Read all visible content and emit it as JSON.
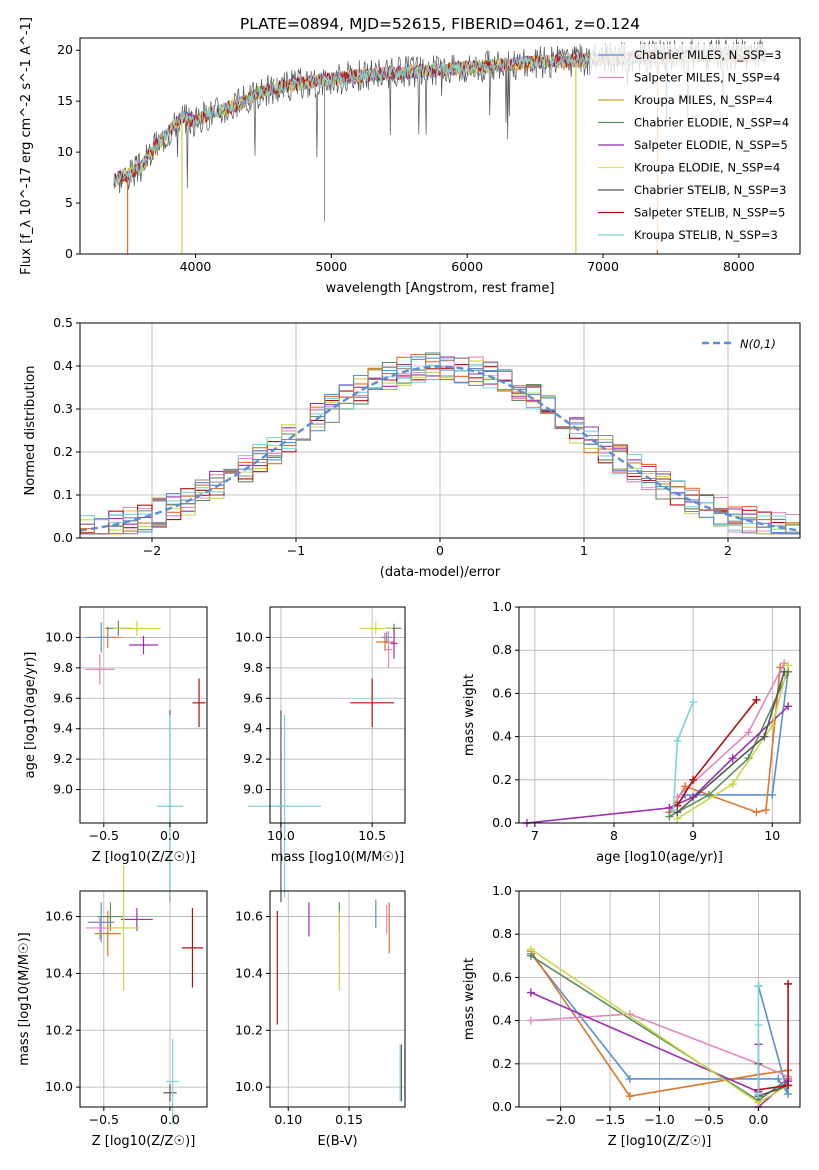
{
  "title": "PLATE=0894, MJD=52615, FIBERID=0461, z=0.124",
  "colors": [
    "#5b8ed6",
    "#e2742b",
    "#5e8c5e",
    "#e08ac0",
    "#9a2fb0",
    "#c9d94a",
    "#8a8a8a",
    "#b51010",
    "#7fd4d8"
  ],
  "legend_entries": [
    {
      "label": "Chabrier MILES, N_SSP=3",
      "color": "#5b8ed6"
    },
    {
      "label": "Salpeter MILES, N_SSP=4",
      "color": "#e08ac0"
    },
    {
      "label": "Kroupa MILES, N_SSP=4",
      "color": "#c8a030"
    },
    {
      "label": "Chabrier ELODIE, N_SSP=4",
      "color": "#5e8c5e"
    },
    {
      "label": "Salpeter ELODIE, N_SSP=5",
      "color": "#9a2fb0"
    },
    {
      "label": "Kroupa ELODIE, N_SSP=4",
      "color": "#d8e060"
    },
    {
      "label": "Chabrier STELIB, N_SSP=3",
      "color": "#555555"
    },
    {
      "label": "Salpeter STELIB, N_SSP=5",
      "color": "#b51010"
    },
    {
      "label": "Kroupa STELIB, N_SSP=3",
      "color": "#7fd4d8"
    }
  ],
  "chart_data": [
    {
      "id": "spectrum",
      "type": "line",
      "xlabel": "wavelength [Angstrom, rest frame]",
      "ylabel": "Flux [f_λ 10^-17 erg cm^-2 s^-1 A^-1]",
      "xlim": [
        3150,
        8450
      ],
      "ylim": [
        0,
        21.2
      ],
      "xticks": [
        4000,
        5000,
        6000,
        7000,
        8000
      ],
      "yticks": [
        0,
        5,
        10,
        15,
        20
      ],
      "grid": false,
      "legend": "top-right",
      "continuum": [
        [
          3400,
          7.3
        ],
        [
          3500,
          7.8
        ],
        [
          3600,
          8.5
        ],
        [
          3700,
          10.5
        ],
        [
          3800,
          12.0
        ],
        [
          3900,
          13.5
        ],
        [
          4000,
          13.0
        ],
        [
          4100,
          13.8
        ],
        [
          4200,
          14.2
        ],
        [
          4300,
          14.6
        ],
        [
          4400,
          15.3
        ],
        [
          4500,
          16.0
        ],
        [
          4700,
          16.6
        ],
        [
          4900,
          17.0
        ],
        [
          5100,
          17.3
        ],
        [
          5300,
          17.6
        ],
        [
          5600,
          17.9
        ],
        [
          5900,
          18.2
        ],
        [
          6200,
          18.5
        ],
        [
          6500,
          18.8
        ],
        [
          6800,
          19.0
        ],
        [
          7100,
          19.2
        ],
        [
          7400,
          19.4
        ],
        [
          7700,
          19.5
        ],
        [
          8000,
          19.5
        ],
        [
          8200,
          19.5
        ]
      ]
    },
    {
      "id": "residuals",
      "type": "step",
      "xlabel": "(data-model)/error",
      "ylabel": "Normed distribution",
      "xlim": [
        -2.5,
        2.5
      ],
      "ylim": [
        0,
        0.5
      ],
      "xticks": [
        -2,
        -1,
        0,
        1,
        2
      ],
      "yticks": [
        0.0,
        0.1,
        0.2,
        0.3,
        0.4,
        0.5
      ],
      "grid": true,
      "legend": "top-right",
      "normal_curve_label": "N(0,1)",
      "normal_curve_color": "#5b8ed6",
      "bin_width": 0.1,
      "series": [
        {
          "color": "#5e8c5e",
          "seed": 1
        },
        {
          "color": "#e08ac0",
          "seed": 2
        },
        {
          "color": "#9a2fb0",
          "seed": 3
        },
        {
          "color": "#c9d94a",
          "seed": 4
        },
        {
          "color": "#b51010",
          "seed": 5
        },
        {
          "color": "#7fd4d8",
          "seed": 6
        },
        {
          "color": "#e2742b",
          "seed": 7
        },
        {
          "color": "#5b8ed6",
          "seed": 8
        },
        {
          "color": "#8a8a8a",
          "seed": 9
        }
      ]
    },
    {
      "id": "age_vs_Z",
      "type": "errorbar",
      "xlabel": "Z [log10(Z/Z☉)]",
      "ylabel": "age [log10(age/yr)]",
      "xlim": [
        -0.68,
        0.28
      ],
      "ylim": [
        8.78,
        10.2
      ],
      "xticks": [
        -0.5,
        0.0
      ],
      "yticks": [
        9.0,
        9.2,
        9.4,
        9.6,
        9.8,
        10.0
      ],
      "grid": true,
      "points": [
        {
          "x": -0.52,
          "y": 10.0,
          "xerr": 0.12,
          "yerr": 0.1,
          "color": "#5b8ed6"
        },
        {
          "x": -0.47,
          "y": 10.0,
          "xerr": 0.1,
          "yerr": 0.07,
          "color": "#e2742b"
        },
        {
          "x": -0.39,
          "y": 10.06,
          "xerr": 0.1,
          "yerr": 0.05,
          "color": "#5e8c5e"
        },
        {
          "x": -0.53,
          "y": 9.79,
          "xerr": 0.11,
          "yerr": 0.1,
          "color": "#e08ac0"
        },
        {
          "x": -0.2,
          "y": 9.95,
          "xerr": 0.11,
          "yerr": 0.06,
          "color": "#9a2fb0"
        },
        {
          "x": -0.25,
          "y": 10.06,
          "xerr": 0.18,
          "yerr": 0.05,
          "color": "#c9d94a"
        },
        {
          "x": 0.0,
          "y": 8.89,
          "xerr": 0.02,
          "yerr": 0.63,
          "color": "#555555"
        },
        {
          "x": 0.22,
          "y": 9.57,
          "xerr": 0.05,
          "yerr": 0.16,
          "color": "#b51010"
        },
        {
          "x": 0.0,
          "y": 8.89,
          "xerr": 0.1,
          "yerr": 0.6,
          "color": "#7fd4d8"
        }
      ]
    },
    {
      "id": "age_vs_mass",
      "type": "errorbar",
      "xlabel": "mass [log10(M/M☉)]",
      "ylabel": "",
      "xlim": [
        9.94,
        10.68
      ],
      "ylim": [
        8.78,
        10.2
      ],
      "xticks": [
        10.0,
        10.5
      ],
      "yticks": [
        9.0,
        9.2,
        9.4,
        9.6,
        9.8,
        10.0
      ],
      "grid": true,
      "points": [
        {
          "x": 10.58,
          "y": 10.0,
          "xerr": 0.03,
          "yerr": 0.04,
          "color": "#5b8ed6"
        },
        {
          "x": 10.57,
          "y": 9.97,
          "xerr": 0.05,
          "yerr": 0.06,
          "color": "#e2742b"
        },
        {
          "x": 10.62,
          "y": 10.06,
          "xerr": 0.04,
          "yerr": 0.03,
          "color": "#5e8c5e"
        },
        {
          "x": 10.59,
          "y": 9.92,
          "xerr": 0.02,
          "yerr": 0.12,
          "color": "#e08ac0"
        },
        {
          "x": 10.62,
          "y": 9.96,
          "xerr": 0.02,
          "yerr": 0.1,
          "color": "#9a2fb0"
        },
        {
          "x": 10.52,
          "y": 10.06,
          "xerr": 0.09,
          "yerr": 0.04,
          "color": "#c9d94a"
        },
        {
          "x": 10.0,
          "y": 8.89,
          "xerr": 0.02,
          "yerr": 0.63,
          "color": "#555555"
        },
        {
          "x": 10.5,
          "y": 9.57,
          "xerr": 0.12,
          "yerr": 0.16,
          "color": "#b51010"
        },
        {
          "x": 10.02,
          "y": 8.89,
          "xerr": 0.2,
          "yerr": 0.6,
          "color": "#7fd4d8"
        }
      ]
    },
    {
      "id": "mass_weight_vs_age",
      "type": "line",
      "xlabel": "age [log10(age/yr)]",
      "ylabel": "mass weight",
      "xlim": [
        6.8,
        10.35
      ],
      "ylim": [
        0,
        1.0
      ],
      "xticks": [
        7,
        8,
        9,
        10
      ],
      "yticks": [
        0.0,
        0.2,
        0.4,
        0.6,
        0.8,
        1.0
      ],
      "grid": true,
      "series": [
        {
          "color": "#5b8ed6",
          "points": [
            [
              8.7,
              0.05
            ],
            [
              8.9,
              0.13
            ],
            [
              10.0,
              0.13
            ],
            [
              10.2,
              0.7
            ]
          ]
        },
        {
          "color": "#e2742b",
          "points": [
            [
              8.7,
              0.05
            ],
            [
              8.9,
              0.17
            ],
            [
              9.8,
              0.05
            ],
            [
              9.92,
              0.06
            ],
            [
              10.1,
              0.72
            ]
          ]
        },
        {
          "color": "#5e8c5e",
          "points": [
            [
              8.7,
              0.03
            ],
            [
              9.2,
              0.13
            ],
            [
              9.7,
              0.3
            ],
            [
              10.2,
              0.7
            ]
          ]
        },
        {
          "color": "#e08ac0",
          "points": [
            [
              8.8,
              0.12
            ],
            [
              9.7,
              0.42
            ],
            [
              10.15,
              0.74
            ]
          ]
        },
        {
          "color": "#9a2fb0",
          "points": [
            [
              6.9,
              0.0
            ],
            [
              8.7,
              0.07
            ],
            [
              9.0,
              0.12
            ],
            [
              9.5,
              0.3
            ],
            [
              10.2,
              0.54
            ]
          ]
        },
        {
          "color": "#c9d94a",
          "points": [
            [
              8.8,
              0.02
            ],
            [
              9.5,
              0.18
            ],
            [
              10.0,
              0.45
            ],
            [
              10.2,
              0.73
            ]
          ]
        },
        {
          "color": "#555555",
          "points": [
            [
              8.8,
              0.05
            ],
            [
              9.9,
              0.4
            ],
            [
              10.15,
              0.7
            ]
          ]
        },
        {
          "color": "#b51010",
          "points": [
            [
              8.8,
              0.08
            ],
            [
              9.0,
              0.2
            ],
            [
              9.8,
              0.57
            ]
          ]
        },
        {
          "color": "#7fd4d8",
          "points": [
            [
              8.75,
              0.06
            ],
            [
              8.8,
              0.38
            ],
            [
              9.0,
              0.56
            ]
          ]
        }
      ]
    },
    {
      "id": "mass_vs_Z",
      "type": "errorbar",
      "xlabel": "Z [log10(Z/Z☉)]",
      "ylabel": "mass [log10(M/M☉)]",
      "xlim": [
        -0.68,
        0.28
      ],
      "ylim": [
        9.93,
        10.69
      ],
      "xticks": [
        -0.5,
        0.0
      ],
      "yticks": [
        10.0,
        10.2,
        10.4,
        10.6
      ],
      "grid": true,
      "points": [
        {
          "x": -0.52,
          "y": 10.58,
          "xerr": 0.1,
          "yerr": 0.07,
          "color": "#5b8ed6"
        },
        {
          "x": -0.47,
          "y": 10.54,
          "xerr": 0.1,
          "yerr": 0.08,
          "color": "#e2742b"
        },
        {
          "x": -0.45,
          "y": 10.6,
          "xerr": 0.1,
          "yerr": 0.05,
          "color": "#5e8c5e"
        },
        {
          "x": -0.53,
          "y": 10.56,
          "xerr": 0.11,
          "yerr": 0.04,
          "color": "#e08ac0"
        },
        {
          "x": -0.25,
          "y": 10.59,
          "xerr": 0.12,
          "yerr": 0.04,
          "color": "#9a2fb0"
        },
        {
          "x": -0.35,
          "y": 10.56,
          "xerr": 0.12,
          "yerr": 0.22,
          "color": "#c9d94a"
        },
        {
          "x": 0.0,
          "y": 9.98,
          "xerr": 0.05,
          "yerr": 0.03,
          "color": "#555555"
        },
        {
          "x": 0.17,
          "y": 10.49,
          "xerr": 0.08,
          "yerr": 0.14,
          "color": "#b51010"
        },
        {
          "x": 0.02,
          "y": 10.02,
          "xerr": 0.05,
          "yerr": 0.15,
          "color": "#7fd4d8"
        }
      ]
    },
    {
      "id": "mass_vs_EBV",
      "type": "errorbar",
      "xlabel": "E(B-V)",
      "ylabel": "",
      "xlim": [
        0.085,
        0.196
      ],
      "ylim": [
        9.93,
        10.69
      ],
      "xticks": [
        0.1,
        0.15
      ],
      "yticks": [
        10.0,
        10.2,
        10.4,
        10.6
      ],
      "grid": true,
      "points": [
        {
          "x": 0.172,
          "y": 10.61,
          "yerr": 0.05,
          "color": "#5b8ed6"
        },
        {
          "x": 0.183,
          "y": 10.56,
          "yerr": 0.09,
          "color": "#e2742b"
        },
        {
          "x": 0.142,
          "y": 10.6,
          "yerr": 0.05,
          "color": "#5e8c5e"
        },
        {
          "x": 0.181,
          "y": 10.59,
          "yerr": 0.05,
          "color": "#e08ac0"
        },
        {
          "x": 0.117,
          "y": 10.59,
          "yerr": 0.06,
          "color": "#9a2fb0"
        },
        {
          "x": 0.142,
          "y": 10.48,
          "yerr": 0.14,
          "color": "#c9d94a"
        },
        {
          "x": 0.193,
          "y": 10.05,
          "yerr": 0.1,
          "color": "#555555"
        },
        {
          "x": 0.091,
          "y": 10.42,
          "yerr": 0.2,
          "color": "#b51010"
        },
        {
          "x": 0.192,
          "y": 10.05,
          "yerr": 0.1,
          "color": "#7fd4d8"
        }
      ]
    },
    {
      "id": "mass_weight_vs_Z",
      "type": "line",
      "xlabel": "Z [log10(Z/Z☉)]",
      "ylabel": "mass weight",
      "xlim": [
        -2.42,
        0.42
      ],
      "ylim": [
        0,
        1.0
      ],
      "xticks": [
        -2.0,
        -1.5,
        -1.0,
        -0.5,
        0.0
      ],
      "yticks": [
        0.0,
        0.2,
        0.4,
        0.6,
        0.8,
        1.0
      ],
      "grid": true,
      "series": [
        {
          "color": "#5b8ed6",
          "points": [
            [
              -2.3,
              0.71
            ],
            [
              -1.3,
              0.13
            ],
            [
              0.2,
              0.13
            ],
            [
              0.3,
              0.06
            ],
            [
              0.0,
              0.56
            ]
          ]
        },
        {
          "color": "#e2742b",
          "points": [
            [
              -2.3,
              0.72
            ],
            [
              -1.3,
              0.05
            ],
            [
              0.0,
              0.15
            ],
            [
              0.3,
              0.17
            ]
          ]
        },
        {
          "color": "#5e8c5e",
          "points": [
            [
              -2.3,
              0.7
            ],
            [
              0.0,
              0.03
            ],
            [
              0.3,
              0.13
            ]
          ]
        },
        {
          "color": "#e08ac0",
          "points": [
            [
              -2.3,
              0.4
            ],
            [
              -1.3,
              0.43
            ],
            [
              0.0,
              0.2
            ],
            [
              0.3,
              0.14
            ]
          ]
        },
        {
          "color": "#9a2fb0",
          "points": [
            [
              -2.3,
              0.53
            ],
            [
              0.0,
              0.07
            ],
            [
              0.0,
              0.29
            ],
            [
              0.0,
              0.0
            ],
            [
              0.3,
              0.12
            ]
          ]
        },
        {
          "color": "#c9d94a",
          "points": [
            [
              -2.3,
              0.73
            ],
            [
              0.0,
              0.02
            ],
            [
              0.3,
              0.1
            ]
          ]
        },
        {
          "color": "#555555",
          "points": [
            [
              0.0,
              0.2
            ],
            [
              0.0,
              0.05
            ],
            [
              0.3,
              0.1
            ]
          ]
        },
        {
          "color": "#b51010",
          "points": [
            [
              0.0,
              0.08
            ],
            [
              0.3,
              0.1
            ],
            [
              0.3,
              0.57
            ]
          ]
        },
        {
          "color": "#7fd4d8",
          "points": [
            [
              0.0,
              0.06
            ],
            [
              0.0,
              0.56
            ],
            [
              0.0,
              0.38
            ]
          ]
        }
      ]
    }
  ]
}
